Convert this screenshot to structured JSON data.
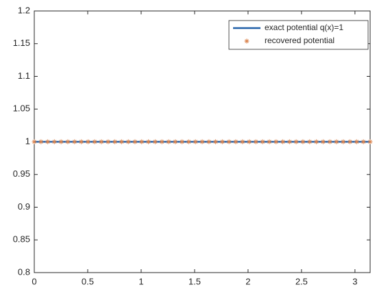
{
  "chart_data": {
    "type": "line",
    "xlim": [
      0,
      3.142
    ],
    "ylim": [
      0.8,
      1.2
    ],
    "xticks": [
      0,
      0.5,
      1,
      1.5,
      2,
      2.5,
      3
    ],
    "yticks": [
      0.8,
      0.85,
      0.9,
      0.95,
      1,
      1.05,
      1.1,
      1.15,
      1.2
    ],
    "legend": "top-right",
    "series": [
      {
        "name": "exact potential q(x)=1",
        "color": "#1f5fa8",
        "mode": "line",
        "x": [
          0,
          3.142
        ],
        "values": [
          1,
          1
        ]
      },
      {
        "name": "recovered potential",
        "color": "#d9804a",
        "mode": "markers",
        "x": [
          0,
          0.063,
          0.126,
          0.188,
          0.251,
          0.314,
          0.377,
          0.44,
          0.503,
          0.565,
          0.628,
          0.691,
          0.754,
          0.817,
          0.88,
          0.942,
          1.005,
          1.068,
          1.131,
          1.194,
          1.257,
          1.319,
          1.382,
          1.445,
          1.508,
          1.571,
          1.634,
          1.696,
          1.759,
          1.822,
          1.885,
          1.948,
          2.011,
          2.073,
          2.136,
          2.199,
          2.262,
          2.325,
          2.388,
          2.45,
          2.513,
          2.576,
          2.639,
          2.702,
          2.765,
          2.827,
          2.89,
          2.953,
          3.016,
          3.079,
          3.142
        ],
        "values": [
          1,
          1,
          1,
          1,
          1,
          1,
          1,
          1,
          1,
          1,
          1,
          1,
          1,
          1,
          1,
          1,
          1,
          1,
          1,
          1,
          1,
          1,
          1,
          1,
          1,
          1,
          1,
          1,
          1,
          1,
          1,
          1,
          1,
          1,
          1,
          1,
          1,
          1,
          1,
          1,
          1,
          1,
          1,
          1,
          1,
          1,
          1,
          1,
          1,
          1,
          1
        ]
      }
    ]
  }
}
